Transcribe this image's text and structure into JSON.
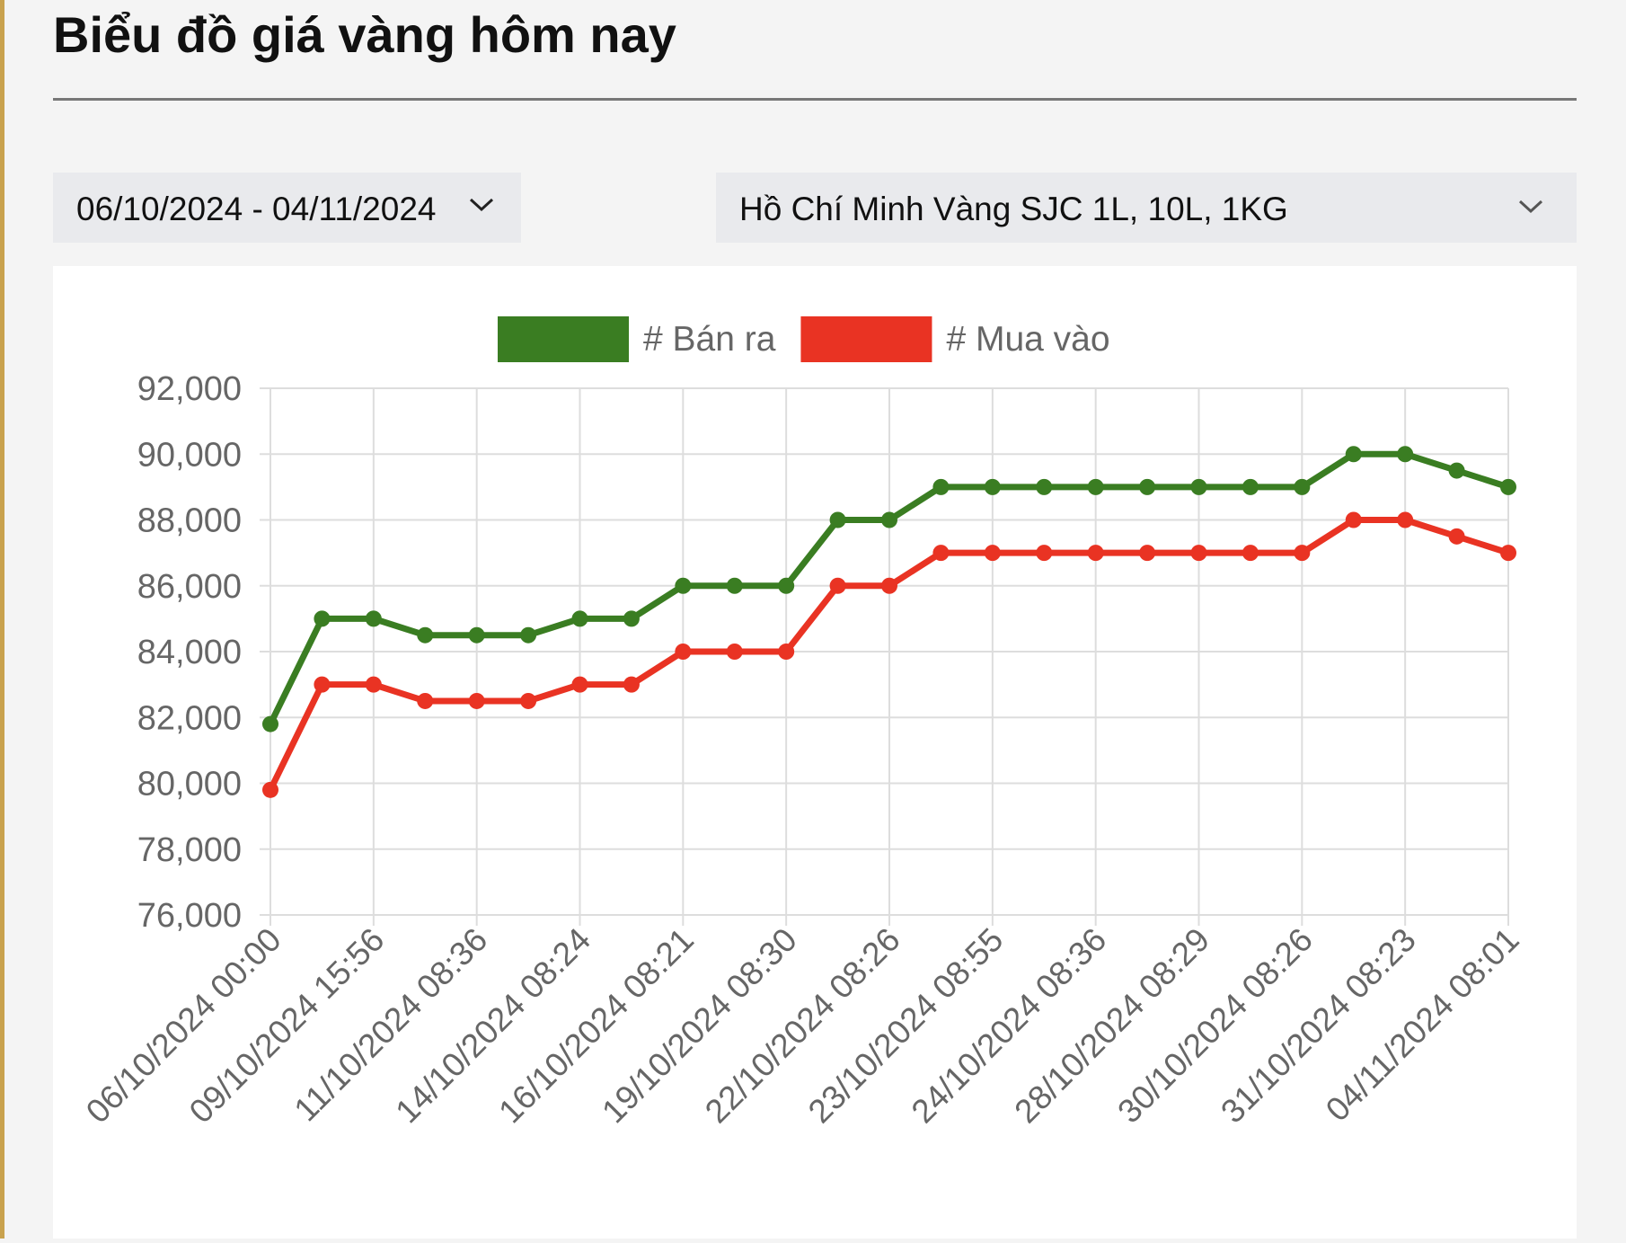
{
  "header": {
    "title": "Biểu đồ giá vàng hôm nay"
  },
  "filters": {
    "date_range": "06/10/2024 - 04/11/2024",
    "location": "Hồ Chí Minh Vàng SJC 1L, 10L, 1KG"
  },
  "chart_data": {
    "type": "line",
    "categories": [
      "06/10/2024 00:00",
      null,
      "09/10/2024 15:56",
      null,
      "11/10/2024 08:36",
      null,
      "14/10/2024 08:24",
      null,
      "16/10/2024 08:21",
      null,
      "19/10/2024 08:30",
      null,
      "22/10/2024 08:26",
      null,
      "23/10/2024 08:55",
      null,
      "24/10/2024 08:36",
      null,
      "28/10/2024 08:29",
      null,
      "30/10/2024 08:26",
      null,
      "31/10/2024 08:23",
      null,
      "04/11/2024 08:01"
    ],
    "series": [
      {
        "name": "# Bán ra",
        "color": "#3a7d22",
        "values": [
          81800,
          85000,
          85000,
          84500,
          84500,
          84500,
          85000,
          85000,
          86000,
          86000,
          86000,
          88000,
          88000,
          89000,
          89000,
          89000,
          89000,
          89000,
          89000,
          89000,
          89000,
          90000,
          90000,
          89500,
          89000
        ]
      },
      {
        "name": "# Mua vào",
        "color": "#e93323",
        "values": [
          79800,
          83000,
          83000,
          82500,
          82500,
          82500,
          83000,
          83000,
          84000,
          84000,
          84000,
          86000,
          86000,
          87000,
          87000,
          87000,
          87000,
          87000,
          87000,
          87000,
          87000,
          88000,
          88000,
          87500,
          87000
        ]
      }
    ],
    "ylim": [
      76000,
      92000
    ],
    "yticks": [
      {
        "value": 76000,
        "label": "76,000"
      },
      {
        "value": 78000,
        "label": "78,000"
      },
      {
        "value": 80000,
        "label": "80,000"
      },
      {
        "value": 82000,
        "label": "82,000"
      },
      {
        "value": 84000,
        "label": "84,000"
      },
      {
        "value": 86000,
        "label": "86,000"
      },
      {
        "value": 88000,
        "label": "88,000"
      },
      {
        "value": 90000,
        "label": "90,000"
      },
      {
        "value": 92000,
        "label": "92,000"
      }
    ],
    "grid": true
  }
}
